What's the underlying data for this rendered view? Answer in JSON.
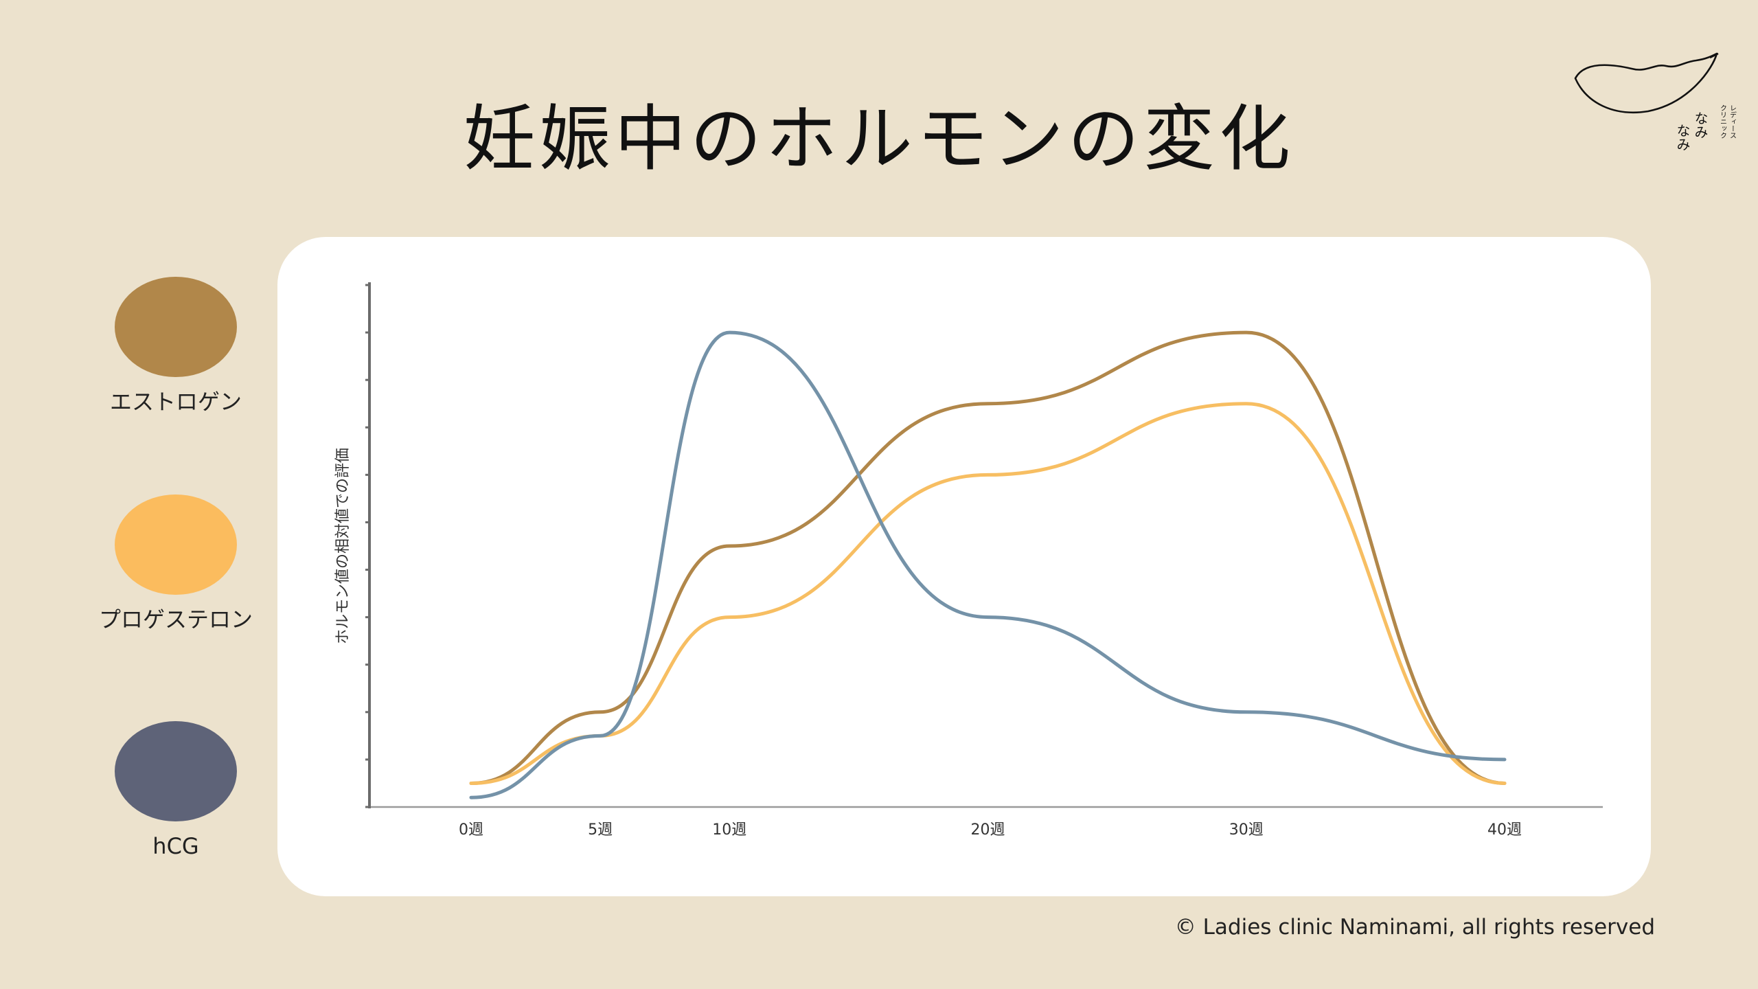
{
  "title": "妊娠中のホルモンの変化",
  "logo": {
    "name_lines": [
      "なみ",
      "なみ"
    ],
    "sub_lines": [
      "レディース",
      "クリニック"
    ]
  },
  "legend": [
    {
      "label": "エストロゲン",
      "color": "#B1874A"
    },
    {
      "label": "プロゲステロン",
      "color": "#FBBC5E"
    },
    {
      "label": "hCG",
      "color": "#5E6378"
    }
  ],
  "copyright": "© Ladies clinic Naminami, all rights reserved",
  "chart_data": {
    "type": "line",
    "title": "",
    "xlabel": "",
    "ylabel": "ホルモン値の相対値での評価",
    "x_ticks": [
      "0週",
      "5週",
      "10週",
      "20週",
      "30週",
      "40週"
    ],
    "x_tick_positions": [
      0,
      5,
      10,
      20,
      30,
      40
    ],
    "ylim": [
      0,
      11
    ],
    "y_tick_count": 11,
    "y_tick_labels_shown": false,
    "grid": false,
    "series": [
      {
        "name": "エストロゲン",
        "color": "#B1874A",
        "points": [
          [
            0,
            0.5
          ],
          [
            5,
            2.0
          ],
          [
            10,
            5.5
          ],
          [
            20,
            8.5
          ],
          [
            30,
            10.0
          ],
          [
            40,
            0.5
          ]
        ]
      },
      {
        "name": "プロゲステロン",
        "color": "#F7BE62",
        "points": [
          [
            0,
            0.5
          ],
          [
            5,
            1.5
          ],
          [
            10,
            4.0
          ],
          [
            20,
            7.0
          ],
          [
            30,
            8.5
          ],
          [
            40,
            0.5
          ]
        ]
      },
      {
        "name": "hCG",
        "color": "#7492A8",
        "points": [
          [
            0,
            0.2
          ],
          [
            5,
            1.5
          ],
          [
            10,
            10.0
          ],
          [
            20,
            4.0
          ],
          [
            30,
            2.0
          ],
          [
            40,
            1.0
          ]
        ]
      }
    ]
  }
}
